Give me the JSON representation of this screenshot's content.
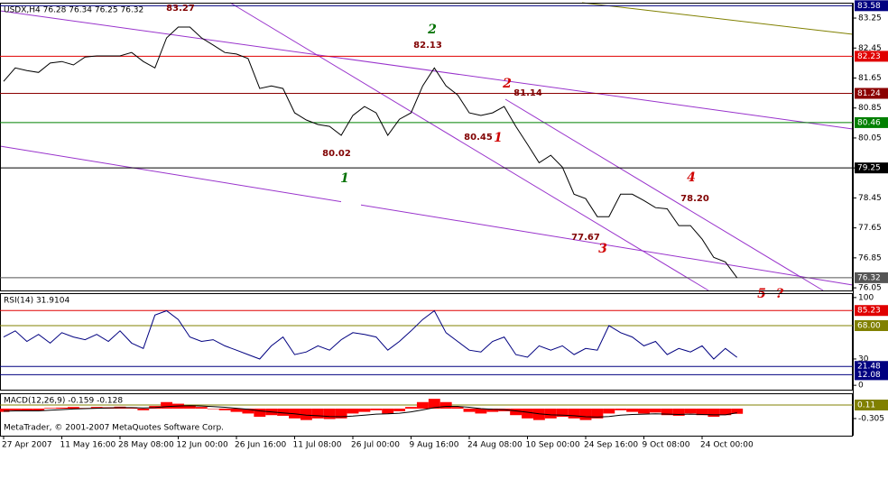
{
  "chart_data": [
    {
      "type": "line",
      "title": "USDX,H4  76.28 76.34 76.25 76.32",
      "footer": "MetaTrader, © 2001-2007 MetaQuotes Software Corp.",
      "categories": [
        "27 Apr 2007",
        null,
        null,
        null,
        null,
        "11 May 16:00",
        null,
        null,
        null,
        null,
        "28 May 08:00",
        null,
        null,
        null,
        null,
        "12 Jun 00:00",
        null,
        null,
        null,
        null,
        "26 Jun 16:00",
        null,
        null,
        null,
        null,
        "11 Jul 08:00",
        null,
        null,
        null,
        null,
        "26 Jul 00:00",
        null,
        null,
        null,
        null,
        "9 Aug 16:00",
        null,
        null,
        null,
        null,
        "24 Aug 08:00",
        null,
        null,
        null,
        null,
        "10 Sep 00:00",
        null,
        null,
        null,
        null,
        "24 Sep 16:00",
        null,
        null,
        null,
        null,
        "9 Oct 08:00",
        null,
        null,
        null,
        null,
        "24 Oct 00:00",
        null,
        null,
        null
      ],
      "series": [
        {
          "color": "#000000",
          "values": [
            81.56,
            81.92,
            81.85,
            81.8,
            82.05,
            82.09,
            82.0,
            82.21,
            82.24,
            82.24,
            82.24,
            82.33,
            82.09,
            81.92,
            82.72,
            83.01,
            83.01,
            82.72,
            82.53,
            82.33,
            82.29,
            82.17,
            81.37,
            81.44,
            81.37,
            80.72,
            80.53,
            80.41,
            80.36,
            80.12,
            80.65,
            80.89,
            80.72,
            80.12,
            80.55,
            80.72,
            81.44,
            81.92,
            81.44,
            81.2,
            80.72,
            80.65,
            80.72,
            80.89,
            80.36,
            79.88,
            79.39,
            79.59,
            79.27,
            78.55,
            78.43,
            77.95,
            77.95,
            78.55,
            78.55,
            78.38,
            78.19,
            78.16,
            77.71,
            77.71,
            77.35,
            76.86,
            76.74,
            76.32
          ]
        }
      ],
      "ylim": [
        75.98,
        83.66
      ],
      "yticks": [
        83.25,
        82.45,
        81.65,
        80.85,
        80.05,
        79.25,
        78.45,
        77.65,
        76.85,
        76.05
      ],
      "levels": [
        {
          "value": 83.58,
          "color": "#000080"
        },
        {
          "value": 82.23,
          "color": "#e00000"
        },
        {
          "value": 81.24,
          "color": "#8b0000"
        },
        {
          "value": 80.46,
          "color": "#008000"
        },
        {
          "value": 79.25,
          "color": "#000000"
        },
        {
          "value": 76.32,
          "color": "#555555"
        }
      ],
      "price_labels": [
        83.27,
        82.13,
        80.02,
        81.14,
        80.45,
        77.67,
        {
          "value": 78.2,
          "label": "78.20"
        }
      ],
      "wave_labels": [
        {
          "text": "2",
          "color": "#007000"
        },
        {
          "text": "1",
          "color": "#007000"
        },
        {
          "text": "2",
          "color": "#d00000"
        },
        {
          "text": "1",
          "color": "#d00000"
        },
        {
          "text": "3",
          "color": "#d00000"
        },
        {
          "text": "4",
          "color": "#d00000"
        },
        {
          "text": "5",
          "color": "#d00000"
        },
        {
          "text": "?",
          "color": "#d00000"
        }
      ]
    },
    {
      "type": "line",
      "title": "RSI(14) 31.9104",
      "series": [
        {
          "color": "#000080",
          "values": [
            55,
            62,
            50,
            58,
            48,
            60,
            55,
            52,
            58,
            50,
            62,
            48,
            42,
            80,
            85,
            75,
            55,
            50,
            52,
            45,
            40,
            35,
            30,
            45,
            55,
            35,
            38,
            45,
            40,
            52,
            60,
            58,
            55,
            40,
            50,
            62,
            75,
            85,
            60,
            50,
            40,
            38,
            50,
            55,
            35,
            32,
            45,
            40,
            45,
            35,
            42,
            40,
            68,
            60,
            55,
            45,
            50,
            35,
            42,
            38,
            45,
            30,
            42,
            31.9104
          ]
        }
      ],
      "ylim": [
        -5,
        105
      ],
      "yticks": [
        100,
        30,
        0
      ],
      "levels": [
        {
          "value": 85.23,
          "color": "#e00000"
        },
        {
          "value": 68,
          "label": "68.00",
          "color": "#808000"
        },
        {
          "value": 21.48,
          "color": "#000080"
        },
        {
          "value": 12.08,
          "color": "#000080"
        }
      ]
    },
    {
      "type": "bar",
      "title": "MACD(12,26,9) -0.159 -0.128",
      "series": [
        {
          "color": "#ff0000",
          "values": [
            -0.1,
            -0.05,
            -0.08,
            -0.06,
            0.02,
            0.03,
            0.05,
            0.02,
            0.05,
            0.04,
            0.06,
            0.02,
            -0.05,
            0.08,
            0.2,
            0.15,
            0.1,
            0.05,
            0.0,
            -0.05,
            -0.1,
            -0.15,
            -0.25,
            -0.2,
            -0.22,
            -0.3,
            -0.35,
            -0.3,
            -0.32,
            -0.3,
            -0.15,
            -0.1,
            -0.05,
            -0.15,
            -0.08,
            0.05,
            0.2,
            0.3,
            0.2,
            0.05,
            -0.1,
            -0.15,
            -0.1,
            -0.08,
            -0.2,
            -0.3,
            -0.35,
            -0.3,
            -0.25,
            -0.3,
            -0.35,
            -0.3,
            -0.15,
            -0.05,
            -0.1,
            -0.15,
            -0.12,
            -0.2,
            -0.22,
            -0.15,
            -0.2,
            -0.25,
            -0.2,
            -0.159
          ]
        },
        {
          "type": "line",
          "color": "#000000",
          "values": [
            -0.08,
            -0.07,
            -0.07,
            -0.07,
            -0.05,
            -0.03,
            -0.01,
            0.0,
            0.01,
            0.02,
            0.03,
            0.03,
            0.02,
            0.03,
            0.06,
            0.08,
            0.09,
            0.08,
            0.06,
            0.04,
            0.01,
            -0.02,
            -0.07,
            -0.1,
            -0.13,
            -0.16,
            -0.2,
            -0.22,
            -0.24,
            -0.25,
            -0.23,
            -0.2,
            -0.17,
            -0.16,
            -0.14,
            -0.1,
            -0.04,
            0.03,
            0.07,
            0.07,
            0.04,
            0.0,
            -0.02,
            -0.03,
            -0.07,
            -0.11,
            -0.16,
            -0.19,
            -0.2,
            -0.22,
            -0.25,
            -0.26,
            -0.24,
            -0.2,
            -0.18,
            -0.17,
            -0.16,
            -0.17,
            -0.18,
            -0.17,
            -0.18,
            -0.19,
            -0.19,
            -0.128
          ]
        }
      ],
      "ylim": [
        -0.83,
        0.47
      ],
      "yticks": [
        -0.305
      ],
      "levels": [
        {
          "value": 0.11,
          "color": "#808000"
        }
      ]
    }
  ]
}
